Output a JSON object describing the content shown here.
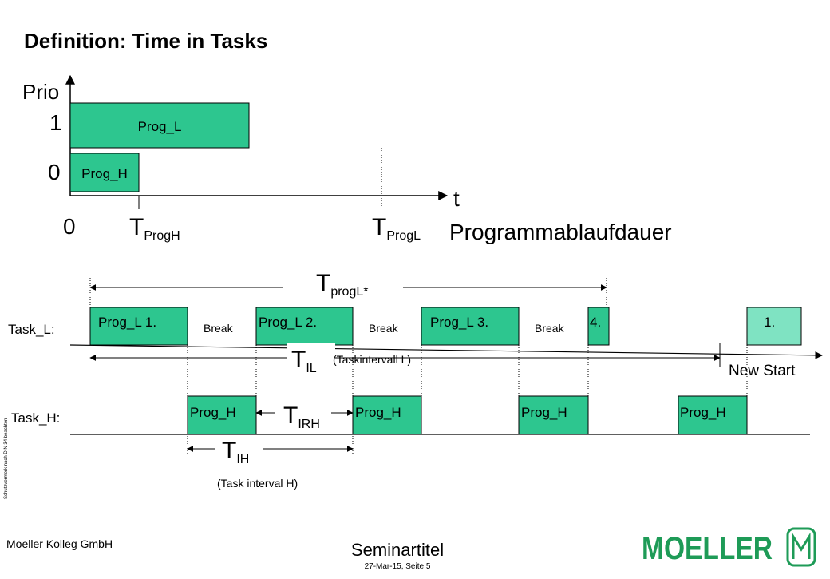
{
  "slide": {
    "title": "Definition: Time in Tasks",
    "side_note": "Schutzvermerk nach DIN 34 beachten",
    "company": "Moeller Kolleg GmbH",
    "seminar": "Seminartitel",
    "date_page": "27-Mar-15, Seite 5",
    "logo_text": "MOELLER"
  },
  "top": {
    "y_axis_label": "Prio",
    "prio_1": "1",
    "prio_0": "0",
    "x_axis_label": "t",
    "origin": "0",
    "prog_l": "Prog_L",
    "prog_h": "Prog_H",
    "t_progh_main": "T",
    "t_progh_sub": "ProgH",
    "t_progl_main": "T",
    "t_progl_sub": "ProgL",
    "runtime_label": "Programmablaufdauer"
  },
  "bottom": {
    "tprogl_star_main": "T",
    "tprogl_star_sub": "progL*",
    "task_l_label": "Task_L:",
    "task_h_label": "Task_H:",
    "prog_l_1": "Prog_L 1.",
    "prog_l_2": "Prog_L 2.",
    "prog_l_3": "Prog_L 3.",
    "prog_l_4": "4.",
    "prog_l_new": "1.",
    "break_1": "Break",
    "break_2": "Break",
    "break_3": "Break",
    "til_main": "T",
    "til_sub": "IL",
    "taskintervall_l": "(Taskintervall L)",
    "new_start": "New Start",
    "prog_h_1": "Prog_H",
    "prog_h_2": "Prog_H",
    "prog_h_3": "Prog_H",
    "prog_h_4": "Prog_H",
    "tirh_main": "T",
    "tirh_sub": "IRH",
    "tih_main": "T",
    "tih_sub": "IH",
    "task_interval_h": "(Task interval H)"
  },
  "colors": {
    "box_fill": "#2DC68F",
    "box_fill_light": "#7FE3C2",
    "logo_green": "#1E9B57"
  }
}
